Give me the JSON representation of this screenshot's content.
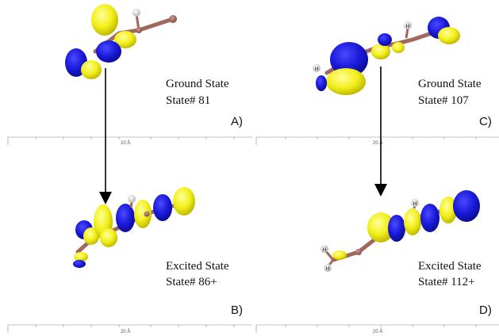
{
  "panels": {
    "a": {
      "state_title": "Ground State",
      "state_number": "State# 81",
      "label": "A)"
    },
    "b": {
      "state_title": "Excited State",
      "state_number": "State# 86+",
      "label": "B)"
    },
    "c": {
      "state_title": "Ground State",
      "state_number": "State# 107",
      "label": "C)"
    },
    "d": {
      "state_title": "Excited State",
      "state_number": "State# 112+",
      "label": "D)"
    }
  },
  "ruler_label": "20 Å",
  "atom_label_h": "H",
  "colors": {
    "orbital_positive": "#f2ef1a",
    "orbital_negative": "#1a1adb",
    "carbon_bond": "#a0675d",
    "hydrogen": "#eeeeee",
    "arrow": "#000000"
  }
}
